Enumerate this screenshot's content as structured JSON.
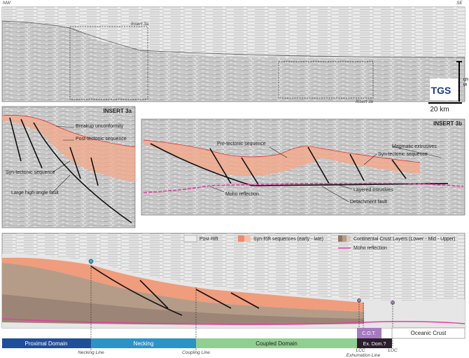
{
  "top_panel": {
    "nw": "NW",
    "se": "SE",
    "insert_3a": "Insert 3a",
    "insert_3b": "Insert 3b",
    "scale_time": "5 s",
    "logo": "TGS",
    "scale_distance": "20 km"
  },
  "insert_3a": {
    "title": "INSERT 3a",
    "labels": [
      "Breakup unconformity",
      "Post-tectonic sequence",
      "Syn-tectonic sequence",
      "Large high-angle fault"
    ]
  },
  "insert_3b": {
    "title": "INSERT 3b",
    "labels": [
      "Pre-tectonic sequence",
      "Magmatic extrusives",
      "Syn-tectonic sequence",
      "Moho reflection",
      "Layered intrusives",
      "Detachment fault"
    ]
  },
  "legend": [
    "Post Rift",
    "Syn-Rift sequences (early - late)",
    "Continental Crust Layers (Lower - Mid - Upper)",
    "Moho reflection"
  ],
  "domains": [
    "Proximal Domain",
    "Necking",
    "Coupled Domain",
    "C.O.T.",
    "Ex. Dom.?",
    "Oceanic Crust"
  ],
  "boundary_lines": [
    "Necking Line",
    "Coupling Line",
    "LCC",
    "Exhumation Line",
    "LOC"
  ]
}
